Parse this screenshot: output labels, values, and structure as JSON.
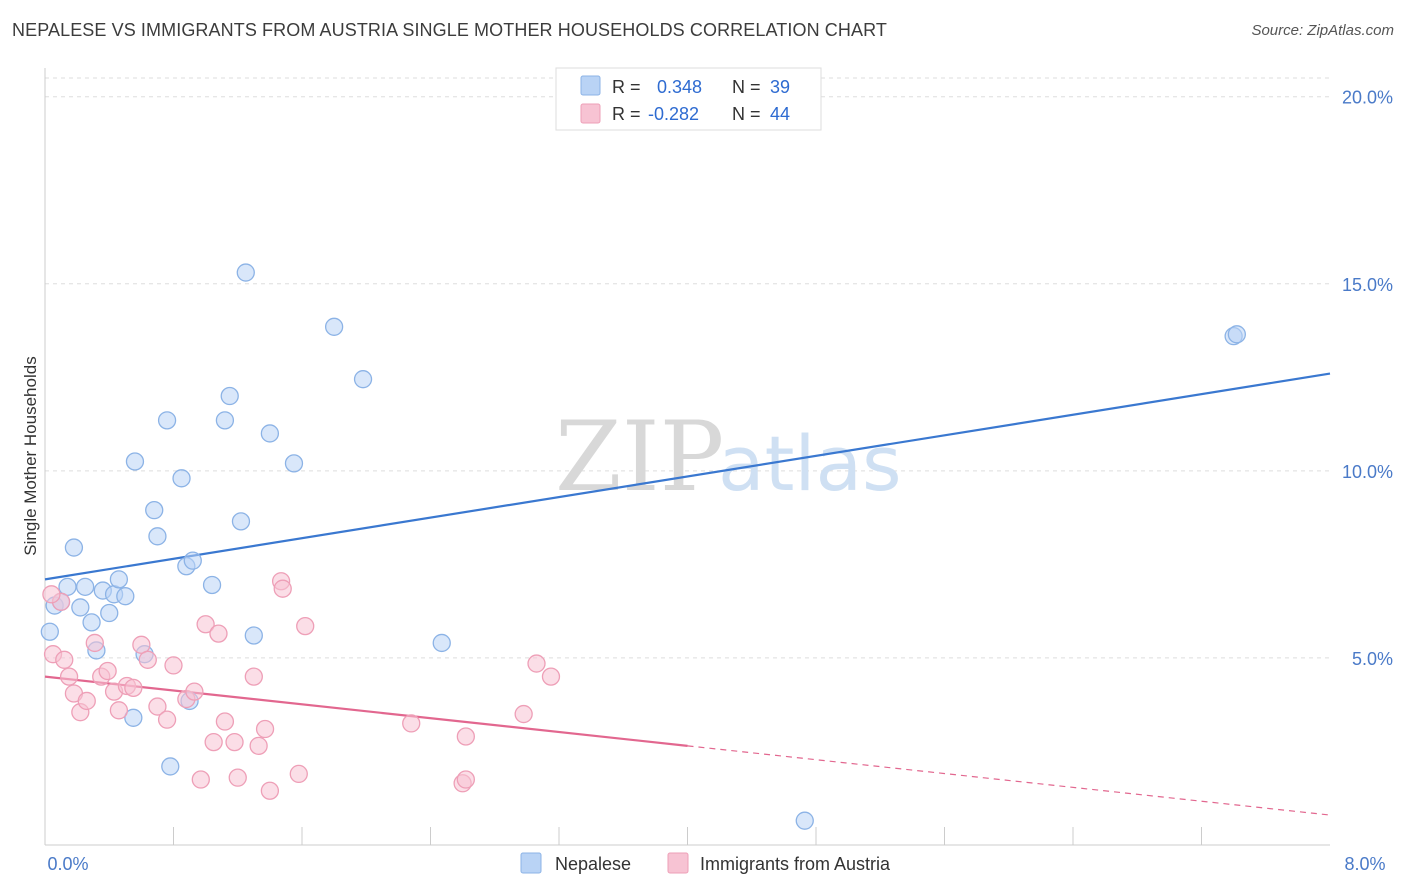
{
  "title": "NEPALESE VS IMMIGRANTS FROM AUSTRIA SINGLE MOTHER HOUSEHOLDS CORRELATION CHART",
  "source": "Source: ZipAtlas.com",
  "watermark": {
    "zip": "ZIP",
    "atlas": "atlas"
  },
  "colors": {
    "blue_fill": "#b9d3f5",
    "blue_stroke": "#8cb3e6",
    "blue_line": "#3a78d0",
    "pink_fill": "#f7c3d3",
    "pink_stroke": "#ee9fb7",
    "pink_line": "#e2678f",
    "grid": "#dddddd",
    "tick_text": "#4a7ac8"
  },
  "legend": {
    "rows": [
      {
        "r_label": "R =",
        "r_value": "0.348",
        "n_label": "N =",
        "n_value": "39"
      },
      {
        "r_label": "R =",
        "r_value": "-0.282",
        "n_label": "N =",
        "n_value": "44"
      }
    ]
  },
  "chart_data": {
    "type": "scatter",
    "ylabel": "Single Mother Households",
    "xlim": [
      0,
      8
    ],
    "ylim": [
      0,
      20.5
    ],
    "x_tick_labels": [
      {
        "value": 0,
        "label": "0.0%"
      },
      {
        "value": 8,
        "label": "8.0%"
      }
    ],
    "x_minor_ticks": [
      0.8,
      1.6,
      2.4,
      3.2,
      4.0,
      4.8,
      5.6,
      6.4,
      7.2
    ],
    "y_ticks": [
      {
        "value": 5,
        "label": "5.0%"
      },
      {
        "value": 10,
        "label": "10.0%"
      },
      {
        "value": 15,
        "label": "15.0%"
      },
      {
        "value": 20,
        "label": "20.0%"
      }
    ],
    "grid": true,
    "legend_position": "top-center",
    "series": [
      {
        "name": "Nepalese",
        "trend": {
          "x0": 0,
          "y0": 7.1,
          "x1": 8,
          "y1": 12.6,
          "solid_until": 8
        },
        "points": [
          [
            0.03,
            5.7
          ],
          [
            0.06,
            6.4
          ],
          [
            0.1,
            6.5
          ],
          [
            0.14,
            6.9
          ],
          [
            0.18,
            7.95
          ],
          [
            0.22,
            6.35
          ],
          [
            0.25,
            6.9
          ],
          [
            0.29,
            5.95
          ],
          [
            0.32,
            5.2
          ],
          [
            0.36,
            6.8
          ],
          [
            0.4,
            6.2
          ],
          [
            0.43,
            6.7
          ],
          [
            0.46,
            7.1
          ],
          [
            0.5,
            6.65
          ],
          [
            0.55,
            3.4
          ],
          [
            0.56,
            10.25
          ],
          [
            0.62,
            5.1
          ],
          [
            0.68,
            8.95
          ],
          [
            0.7,
            8.25
          ],
          [
            0.76,
            11.35
          ],
          [
            0.78,
            2.1
          ],
          [
            0.85,
            9.8
          ],
          [
            0.88,
            7.45
          ],
          [
            0.92,
            7.6
          ],
          [
            0.9,
            3.85
          ],
          [
            1.04,
            6.95
          ],
          [
            1.12,
            11.35
          ],
          [
            1.15,
            12.0
          ],
          [
            1.22,
            8.65
          ],
          [
            1.25,
            15.3
          ],
          [
            1.3,
            5.6
          ],
          [
            1.4,
            11.0
          ],
          [
            1.55,
            10.2
          ],
          [
            1.8,
            13.85
          ],
          [
            1.98,
            12.45
          ],
          [
            2.47,
            5.4
          ],
          [
            4.73,
            0.65
          ],
          [
            7.4,
            13.6
          ],
          [
            7.42,
            13.65
          ]
        ]
      },
      {
        "name": "Immigrants from Austria",
        "trend": {
          "x0": 0,
          "y0": 4.5,
          "x1": 8,
          "y1": 0.8,
          "solid_until": 4.0
        },
        "points": [
          [
            0.05,
            5.1
          ],
          [
            0.1,
            6.5
          ],
          [
            0.12,
            4.95
          ],
          [
            0.15,
            4.5
          ],
          [
            0.18,
            4.05
          ],
          [
            0.22,
            3.55
          ],
          [
            0.26,
            3.85
          ],
          [
            0.31,
            5.4
          ],
          [
            0.35,
            4.5
          ],
          [
            0.39,
            4.65
          ],
          [
            0.43,
            4.1
          ],
          [
            0.46,
            3.6
          ],
          [
            0.51,
            4.25
          ],
          [
            0.55,
            4.2
          ],
          [
            0.6,
            5.35
          ],
          [
            0.64,
            4.95
          ],
          [
            0.7,
            3.7
          ],
          [
            0.76,
            3.35
          ],
          [
            0.8,
            4.8
          ],
          [
            0.88,
            3.9
          ],
          [
            0.93,
            4.1
          ],
          [
            0.97,
            1.75
          ],
          [
            1.0,
            5.9
          ],
          [
            1.05,
            2.75
          ],
          [
            1.08,
            5.65
          ],
          [
            1.12,
            3.3
          ],
          [
            1.18,
            2.75
          ],
          [
            1.2,
            1.8
          ],
          [
            1.3,
            4.5
          ],
          [
            1.33,
            2.65
          ],
          [
            1.37,
            3.1
          ],
          [
            1.4,
            1.45
          ],
          [
            1.47,
            7.05
          ],
          [
            1.48,
            6.85
          ],
          [
            1.58,
            1.9
          ],
          [
            1.62,
            5.85
          ],
          [
            2.28,
            3.25
          ],
          [
            2.6,
            1.65
          ],
          [
            2.62,
            1.75
          ],
          [
            2.62,
            2.9
          ],
          [
            2.98,
            3.5
          ],
          [
            3.06,
            4.85
          ],
          [
            3.15,
            4.5
          ],
          [
            0.04,
            6.7
          ]
        ]
      }
    ]
  }
}
